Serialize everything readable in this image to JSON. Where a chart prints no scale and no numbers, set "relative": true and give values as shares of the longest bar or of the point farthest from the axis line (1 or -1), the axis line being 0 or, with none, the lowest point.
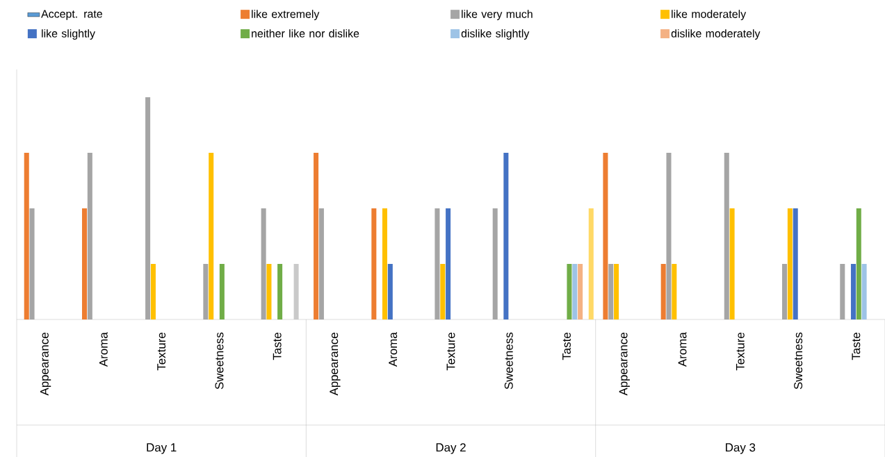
{
  "chart_data": {
    "type": "bar",
    "relative": true,
    "legend": "top",
    "categories": [
      "Appearance",
      "Aroma",
      "Texture",
      "Sweetness",
      "Taste",
      "Appearance",
      "Aroma",
      "Texture",
      "Sweetness",
      "Taste",
      "Appearance",
      "Aroma",
      "Texture",
      "Sweetness",
      "Taste"
    ],
    "annotations": [
      "Day 1",
      "Day 2",
      "Day 3"
    ],
    "series": [
      {
        "name": "Accept. rate",
        "color": "#5b9bd5",
        "values": [
          null,
          null,
          null,
          null,
          null,
          null,
          null,
          null,
          null,
          null,
          null,
          null,
          null,
          null,
          null
        ]
      },
      {
        "name": "like extremely",
        "color": "#ed7d31",
        "values": [
          0.75,
          0.5,
          null,
          null,
          null,
          0.75,
          0.5,
          null,
          null,
          null,
          0.75,
          0.25,
          null,
          null,
          null
        ]
      },
      {
        "name": "like very much",
        "color": "#a5a5a5",
        "values": [
          0.5,
          0.75,
          1,
          0.25,
          0.5,
          0.5,
          null,
          0.5,
          0.5,
          null,
          0.25,
          0.75,
          0.75,
          0.25,
          0.25
        ]
      },
      {
        "name": "like moderately",
        "color": "#ffc000",
        "values": [
          null,
          null,
          0.25,
          0.75,
          0.25,
          null,
          0.5,
          0.25,
          null,
          null,
          0.25,
          0.25,
          0.5,
          0.5,
          null
        ]
      },
      {
        "name": "like slightly",
        "color": "#4472c4",
        "values": [
          null,
          null,
          null,
          null,
          null,
          null,
          0.25,
          0.5,
          0.75,
          null,
          null,
          null,
          null,
          0.5,
          0.25
        ]
      },
      {
        "name": "neither like nor dislike",
        "color": "#70ad47",
        "values": [
          null,
          null,
          null,
          0.25,
          0.25,
          null,
          null,
          null,
          null,
          0.25,
          null,
          null,
          null,
          null,
          0.5
        ]
      },
      {
        "name": "dislike slightly",
        "color": "#9dc3e6",
        "values": [
          null,
          null,
          null,
          null,
          null,
          null,
          null,
          null,
          null,
          0.25,
          null,
          null,
          null,
          null,
          0.25
        ]
      },
      {
        "name": "dislike moderately",
        "color": "#f4b183",
        "values": [
          null,
          null,
          null,
          null,
          null,
          null,
          null,
          null,
          null,
          0.25,
          null,
          null,
          null,
          null,
          null
        ]
      },
      {
        "color": "#c9c9c9",
        "values": [
          null,
          null,
          null,
          null,
          0.25,
          null,
          null,
          null,
          null,
          null,
          null,
          null,
          null,
          null,
          null
        ]
      },
      {
        "color": "#ffd966",
        "values": [
          null,
          null,
          null,
          null,
          null,
          null,
          null,
          null,
          null,
          0.5,
          null,
          null,
          null,
          null,
          null
        ]
      }
    ]
  }
}
